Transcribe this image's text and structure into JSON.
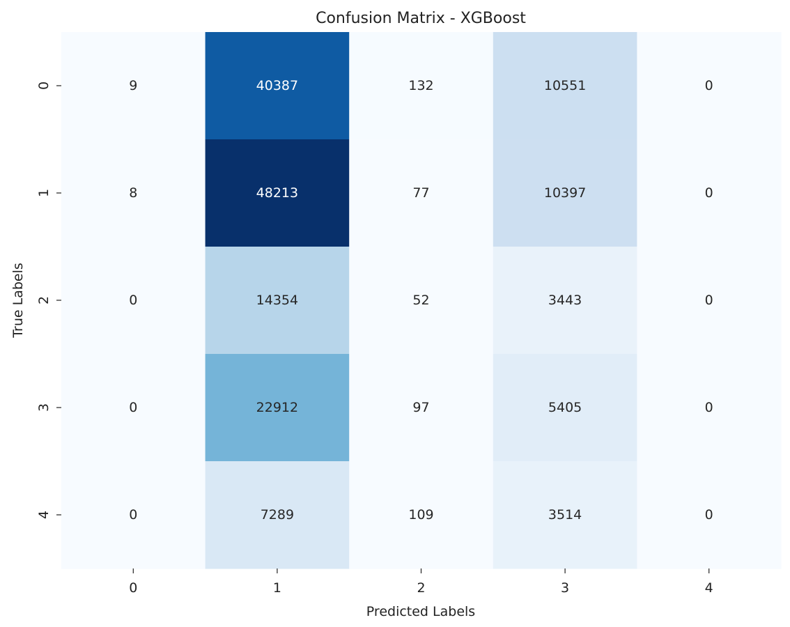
{
  "chart_data": {
    "type": "heatmap",
    "title": "Confusion Matrix - XGBoost",
    "xlabel": "Predicted Labels",
    "ylabel": "True Labels",
    "x_categories": [
      "0",
      "1",
      "2",
      "3",
      "4"
    ],
    "y_categories": [
      "0",
      "1",
      "2",
      "3",
      "4"
    ],
    "values": [
      [
        9,
        40387,
        132,
        10551,
        0
      ],
      [
        8,
        48213,
        77,
        10397,
        0
      ],
      [
        0,
        14354,
        52,
        3443,
        0
      ],
      [
        0,
        22912,
        97,
        5405,
        0
      ],
      [
        0,
        7289,
        109,
        3514,
        0
      ]
    ],
    "colormap": "Blues",
    "colorbar": false,
    "annotations": true,
    "grid": false
  }
}
